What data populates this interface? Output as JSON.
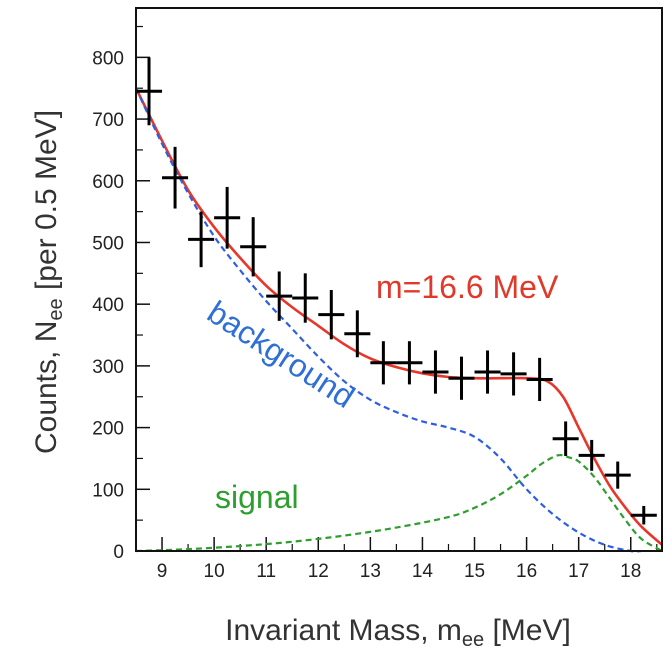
{
  "chart_data": {
    "type": "scatter",
    "title": "",
    "xlabel": {
      "main": "Invariant Mass, m",
      "sub": "ee",
      "unit": " [MeV]"
    },
    "ylabel": {
      "main": "Counts, N",
      "sub": "ee",
      "unit": " [per 0.5 MeV]"
    },
    "xlim": [
      8.5,
      18.6
    ],
    "ylim": [
      0,
      880
    ],
    "xticks": [
      9,
      10,
      11,
      12,
      13,
      14,
      15,
      16,
      17,
      18
    ],
    "yticks": [
      0,
      100,
      200,
      300,
      400,
      500,
      600,
      700,
      800
    ],
    "grid": false,
    "annotations": [
      {
        "text": "m=16.6 MeV",
        "color": "#e0392b"
      },
      {
        "text": "background",
        "color": "#2f6fd6"
      },
      {
        "text": "signal",
        "color": "#2e9e2e"
      }
    ],
    "series": [
      {
        "name": "data",
        "style": "errorbar",
        "color": "#000000",
        "x": [
          8.75,
          9.25,
          9.75,
          10.25,
          10.75,
          11.25,
          11.75,
          12.25,
          12.75,
          13.25,
          13.75,
          14.25,
          14.75,
          15.25,
          15.75,
          16.25,
          16.75,
          17.25,
          17.75,
          18.25
        ],
        "y": [
          745,
          605,
          505,
          540,
          493,
          413,
          410,
          383,
          352,
          305,
          305,
          290,
          280,
          290,
          287,
          278,
          182,
          155,
          123,
          58
        ],
        "yerr": [
          55,
          50,
          45,
          50,
          48,
          40,
          40,
          40,
          38,
          35,
          35,
          35,
          35,
          35,
          35,
          35,
          28,
          25,
          22,
          15
        ],
        "xerr": 0.25
      },
      {
        "name": "m=16.6 MeV",
        "style": "solid",
        "color": "#e8362a",
        "x": [
          8.5,
          9.0,
          9.5,
          10.0,
          10.5,
          11.0,
          11.5,
          12.0,
          12.5,
          13.0,
          13.5,
          14.0,
          14.5,
          15.0,
          15.5,
          16.0,
          16.4,
          16.7,
          17.0,
          17.3,
          17.6,
          17.9,
          18.2,
          18.6
        ],
        "y": [
          750,
          665,
          585,
          525,
          475,
          430,
          395,
          365,
          335,
          312,
          298,
          288,
          282,
          280,
          280,
          280,
          275,
          250,
          200,
          150,
          105,
          70,
          40,
          10
        ]
      },
      {
        "name": "background",
        "style": "dashed",
        "color": "#2f5fe0",
        "x": [
          8.5,
          9.0,
          9.5,
          10.0,
          10.5,
          11.0,
          11.5,
          12.0,
          12.5,
          13.0,
          13.5,
          14.0,
          14.5,
          15.0,
          15.5,
          16.0,
          16.5,
          17.0,
          17.5,
          18.0,
          18.2
        ],
        "y": [
          750,
          660,
          580,
          510,
          455,
          405,
          360,
          315,
          275,
          245,
          225,
          210,
          200,
          185,
          150,
          100,
          60,
          30,
          10,
          0,
          0
        ]
      },
      {
        "name": "signal",
        "style": "dashed",
        "color": "#2e9e2e",
        "x": [
          8.5,
          9.5,
          10.5,
          11.5,
          12.5,
          13.5,
          14.5,
          15.0,
          15.5,
          16.0,
          16.3,
          16.6,
          16.8,
          17.0,
          17.3,
          17.6,
          17.9,
          18.2,
          18.6
        ],
        "y": [
          0,
          3,
          8,
          15,
          25,
          38,
          55,
          70,
          92,
          122,
          142,
          155,
          152,
          145,
          120,
          85,
          50,
          20,
          0
        ]
      }
    ]
  }
}
